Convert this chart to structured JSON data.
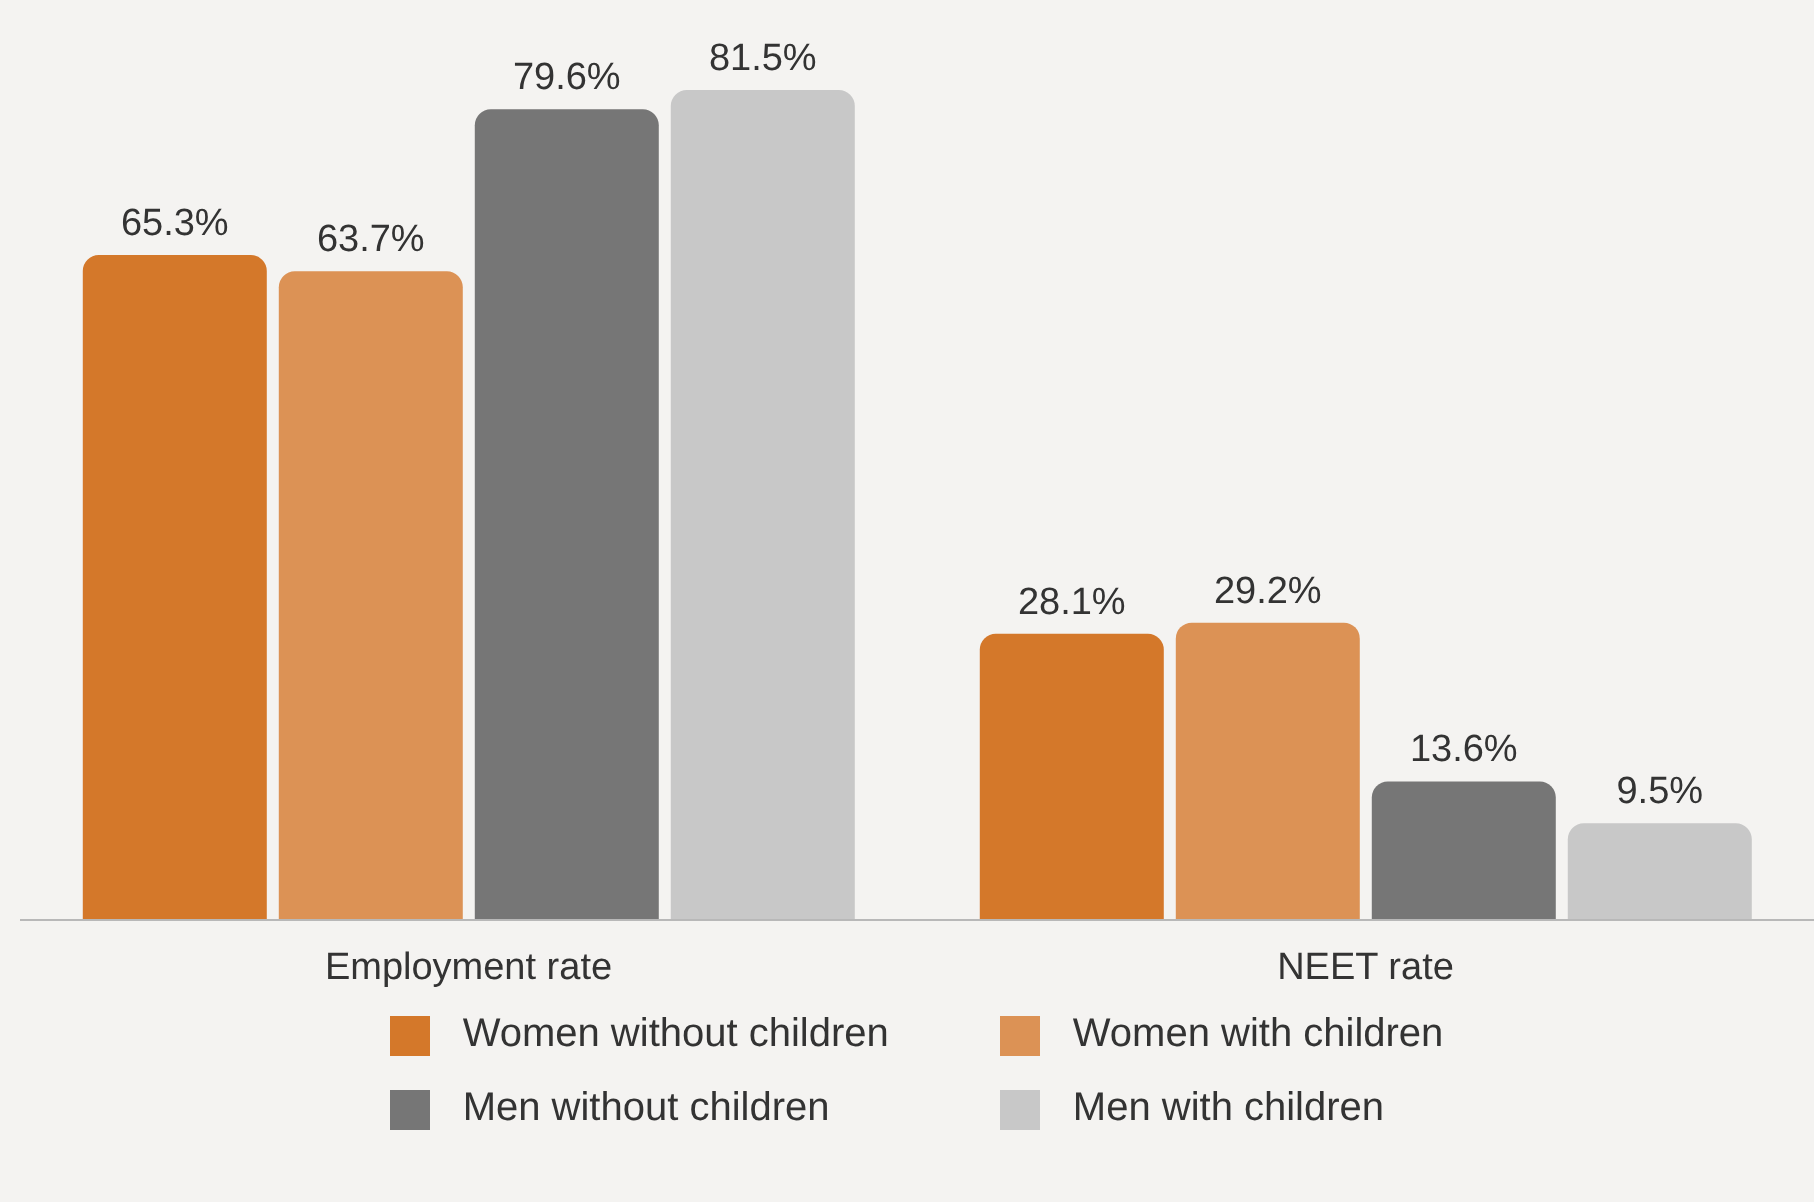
{
  "chart_data": {
    "type": "bar",
    "categories": [
      "Employment rate",
      "NEET rate"
    ],
    "series": [
      {
        "name": "Women without children",
        "color": "#d4782a",
        "values": [
          65.3,
          28.1
        ],
        "value_labels": [
          "65.3%",
          "28.1%"
        ]
      },
      {
        "name": "Women with children",
        "color": "#dc9255",
        "values": [
          63.7,
          29.2
        ],
        "value_labels": [
          "63.7%",
          "29.2%"
        ]
      },
      {
        "name": "Men without children",
        "color": "#767676",
        "values": [
          79.6,
          13.6
        ],
        "value_labels": [
          "79.6%",
          "13.6%"
        ]
      },
      {
        "name": "Men with children",
        "color": "#c8c8c8",
        "values": [
          81.5,
          9.5
        ],
        "value_labels": [
          "81.5%",
          "9.5%"
        ]
      }
    ],
    "legend": "bottom",
    "grid": false
  }
}
